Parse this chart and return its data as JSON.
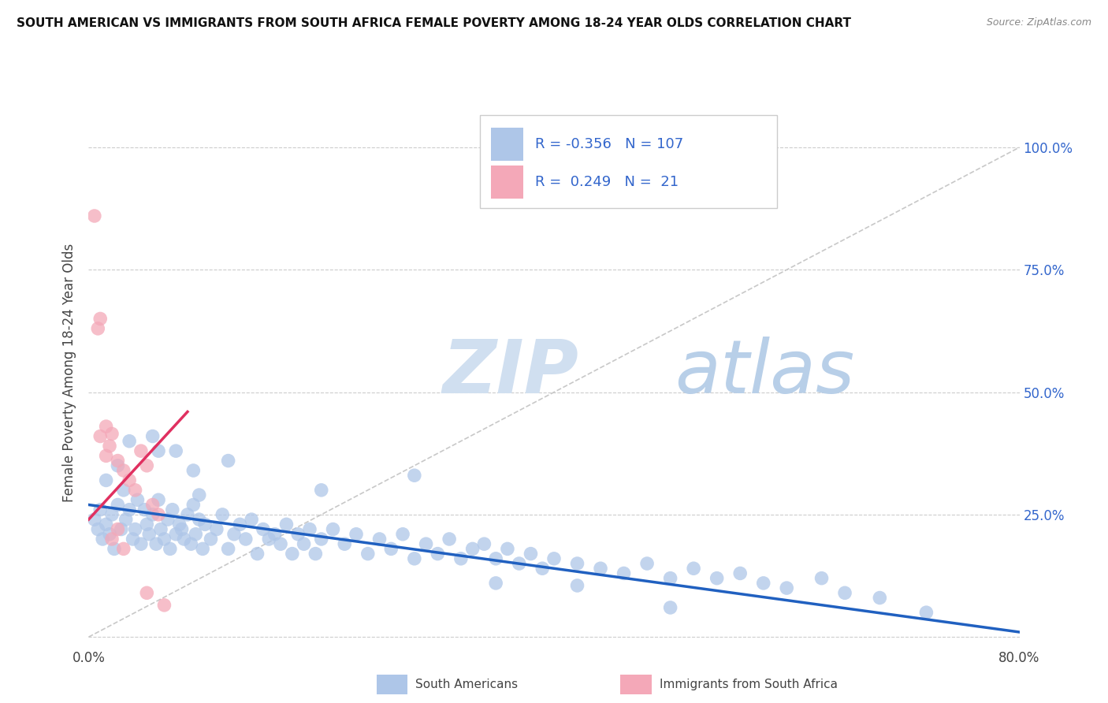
{
  "title": "SOUTH AMERICAN VS IMMIGRANTS FROM SOUTH AFRICA FEMALE POVERTY AMONG 18-24 YEAR OLDS CORRELATION CHART",
  "source": "Source: ZipAtlas.com",
  "ylabel": "Female Poverty Among 18-24 Year Olds",
  "xlim": [
    0.0,
    0.8
  ],
  "ylim": [
    -0.02,
    1.1
  ],
  "xticks": [
    0.0,
    0.2,
    0.4,
    0.6,
    0.8
  ],
  "xtick_labels": [
    "0.0%",
    "",
    "",
    "",
    "80.0%"
  ],
  "ytick_labels": [
    "",
    "25.0%",
    "50.0%",
    "75.0%",
    "100.0%"
  ],
  "yticks": [
    0.0,
    0.25,
    0.5,
    0.75,
    1.0
  ],
  "blue_R": -0.356,
  "blue_N": 107,
  "pink_R": 0.249,
  "pink_N": 21,
  "blue_color": "#aec6e8",
  "pink_color": "#f4a8b8",
  "blue_line_color": "#2060c0",
  "pink_line_color": "#e03060",
  "grid_color": "#cccccc",
  "watermark_color": "#dce8f5",
  "background_color": "#ffffff",
  "legend_text_color": "#3366cc",
  "blue_scatter_x": [
    0.005,
    0.008,
    0.01,
    0.012,
    0.015,
    0.018,
    0.02,
    0.022,
    0.025,
    0.028,
    0.03,
    0.032,
    0.035,
    0.038,
    0.04,
    0.042,
    0.045,
    0.048,
    0.05,
    0.052,
    0.055,
    0.058,
    0.06,
    0.062,
    0.065,
    0.068,
    0.07,
    0.072,
    0.075,
    0.078,
    0.08,
    0.082,
    0.085,
    0.088,
    0.09,
    0.092,
    0.095,
    0.098,
    0.1,
    0.105,
    0.11,
    0.115,
    0.12,
    0.125,
    0.13,
    0.135,
    0.14,
    0.145,
    0.15,
    0.155,
    0.16,
    0.165,
    0.17,
    0.175,
    0.18,
    0.185,
    0.19,
    0.195,
    0.2,
    0.21,
    0.22,
    0.23,
    0.24,
    0.25,
    0.26,
    0.27,
    0.28,
    0.29,
    0.3,
    0.31,
    0.32,
    0.33,
    0.34,
    0.35,
    0.36,
    0.37,
    0.38,
    0.39,
    0.4,
    0.42,
    0.44,
    0.46,
    0.48,
    0.5,
    0.52,
    0.54,
    0.56,
    0.58,
    0.6,
    0.63,
    0.65,
    0.68,
    0.72,
    0.015,
    0.025,
    0.06,
    0.09,
    0.12,
    0.2,
    0.28,
    0.35,
    0.42,
    0.5,
    0.035,
    0.055,
    0.075,
    0.095
  ],
  "blue_scatter_y": [
    0.24,
    0.22,
    0.26,
    0.2,
    0.23,
    0.21,
    0.25,
    0.18,
    0.27,
    0.22,
    0.3,
    0.24,
    0.26,
    0.2,
    0.22,
    0.28,
    0.19,
    0.26,
    0.23,
    0.21,
    0.25,
    0.19,
    0.28,
    0.22,
    0.2,
    0.24,
    0.18,
    0.26,
    0.21,
    0.23,
    0.22,
    0.2,
    0.25,
    0.19,
    0.27,
    0.21,
    0.24,
    0.18,
    0.23,
    0.2,
    0.22,
    0.25,
    0.18,
    0.21,
    0.23,
    0.2,
    0.24,
    0.17,
    0.22,
    0.2,
    0.21,
    0.19,
    0.23,
    0.17,
    0.21,
    0.19,
    0.22,
    0.17,
    0.2,
    0.22,
    0.19,
    0.21,
    0.17,
    0.2,
    0.18,
    0.21,
    0.16,
    0.19,
    0.17,
    0.2,
    0.16,
    0.18,
    0.19,
    0.16,
    0.18,
    0.15,
    0.17,
    0.14,
    0.16,
    0.15,
    0.14,
    0.13,
    0.15,
    0.12,
    0.14,
    0.12,
    0.13,
    0.11,
    0.1,
    0.12,
    0.09,
    0.08,
    0.05,
    0.32,
    0.35,
    0.38,
    0.34,
    0.36,
    0.3,
    0.33,
    0.11,
    0.105,
    0.06,
    0.4,
    0.41,
    0.38,
    0.29
  ],
  "pink_scatter_x": [
    0.005,
    0.008,
    0.01,
    0.015,
    0.018,
    0.02,
    0.025,
    0.03,
    0.035,
    0.04,
    0.045,
    0.05,
    0.055,
    0.06,
    0.01,
    0.015,
    0.02,
    0.025,
    0.03,
    0.05,
    0.065
  ],
  "pink_scatter_y": [
    0.86,
    0.63,
    0.65,
    0.37,
    0.39,
    0.415,
    0.36,
    0.34,
    0.32,
    0.3,
    0.38,
    0.35,
    0.27,
    0.25,
    0.41,
    0.43,
    0.2,
    0.22,
    0.18,
    0.09,
    0.065
  ],
  "blue_trend_x": [
    0.0,
    0.8
  ],
  "blue_trend_y": [
    0.27,
    0.01
  ],
  "pink_trend_x": [
    0.0,
    0.085
  ],
  "pink_trend_y": [
    0.24,
    0.46
  ],
  "diag_line_x": [
    0.0,
    0.8
  ],
  "diag_line_y": [
    0.0,
    1.0
  ]
}
